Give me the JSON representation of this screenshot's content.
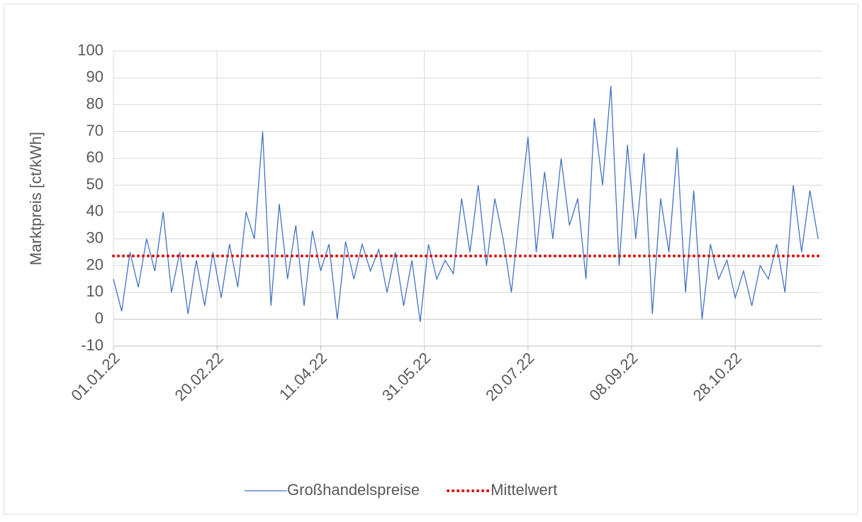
{
  "chart_data": {
    "type": "line",
    "y_label": "Marktpreis [ct/kWh]",
    "x": [
      "2022-01-01",
      "2022-01-05",
      "2022-01-09",
      "2022-01-13",
      "2022-01-17",
      "2022-01-21",
      "2022-01-25",
      "2022-01-29",
      "2022-02-02",
      "2022-02-06",
      "2022-02-10",
      "2022-02-14",
      "2022-02-18",
      "2022-02-22",
      "2022-02-26",
      "2022-03-02",
      "2022-03-06",
      "2022-03-10",
      "2022-03-14",
      "2022-03-18",
      "2022-03-22",
      "2022-03-26",
      "2022-03-30",
      "2022-04-03",
      "2022-04-07",
      "2022-04-11",
      "2022-04-15",
      "2022-04-19",
      "2022-04-23",
      "2022-04-27",
      "2022-05-01",
      "2022-05-05",
      "2022-05-09",
      "2022-05-13",
      "2022-05-17",
      "2022-05-21",
      "2022-05-25",
      "2022-05-29",
      "2022-06-02",
      "2022-06-06",
      "2022-06-10",
      "2022-06-14",
      "2022-06-18",
      "2022-06-22",
      "2022-06-26",
      "2022-06-30",
      "2022-07-04",
      "2022-07-08",
      "2022-07-12",
      "2022-07-16",
      "2022-07-20",
      "2022-07-24",
      "2022-07-28",
      "2022-08-01",
      "2022-08-05",
      "2022-08-09",
      "2022-08-13",
      "2022-08-17",
      "2022-08-21",
      "2022-08-25",
      "2022-08-29",
      "2022-09-02",
      "2022-09-06",
      "2022-09-10",
      "2022-09-14",
      "2022-09-18",
      "2022-09-22",
      "2022-09-26",
      "2022-09-30",
      "2022-10-04",
      "2022-10-08",
      "2022-10-12",
      "2022-10-16",
      "2022-10-20",
      "2022-10-24",
      "2022-10-28",
      "2022-11-01",
      "2022-11-05",
      "2022-11-09",
      "2022-11-13",
      "2022-11-17",
      "2022-11-21",
      "2022-11-25",
      "2022-11-29",
      "2022-12-03",
      "2022-12-07"
    ],
    "series": [
      {
        "name": "Großhandelspreise",
        "color": "#4472c4",
        "values": [
          15,
          3,
          25,
          12,
          30,
          18,
          40,
          10,
          25,
          2,
          22,
          5,
          25,
          8,
          28,
          12,
          40,
          30,
          70,
          5,
          43,
          15,
          35,
          5,
          33,
          18,
          28,
          0,
          29,
          15,
          28,
          18,
          26,
          10,
          25,
          5,
          22,
          -1,
          28,
          15,
          22,
          17,
          45,
          25,
          50,
          20,
          45,
          30,
          10,
          40,
          68,
          25,
          55,
          30,
          60,
          35,
          45,
          15,
          75,
          50,
          87,
          20,
          65,
          30,
          62,
          2,
          45,
          25,
          64,
          10,
          48,
          0,
          28,
          15,
          22,
          8,
          18,
          5,
          20,
          15,
          28,
          10,
          50,
          25,
          48,
          30
        ]
      },
      {
        "name": "Mittelwert",
        "color": "#e00000",
        "dotted": true,
        "x": [
          "2022-01-01",
          "2022-12-09"
        ],
        "values": [
          23.6,
          23.6
        ]
      }
    ],
    "xlim": [
      "2022-01-01",
      "2022-12-09"
    ],
    "xticks": [
      {
        "value": "2022-01-01",
        "label": "01.01.22"
      },
      {
        "value": "2022-02-20",
        "label": "20.02.22"
      },
      {
        "value": "2022-04-11",
        "label": "11.04.22"
      },
      {
        "value": "2022-05-31",
        "label": "31.05.22"
      },
      {
        "value": "2022-07-20",
        "label": "20.07.22"
      },
      {
        "value": "2022-09-08",
        "label": "08.09.22"
      },
      {
        "value": "2022-10-28",
        "label": "28.10.22"
      }
    ],
    "ylim": [
      -10,
      100
    ],
    "yticks": [
      -10,
      0,
      10,
      20,
      30,
      40,
      50,
      60,
      70,
      80,
      90,
      100
    ],
    "grid": true,
    "legend": "bottom"
  }
}
